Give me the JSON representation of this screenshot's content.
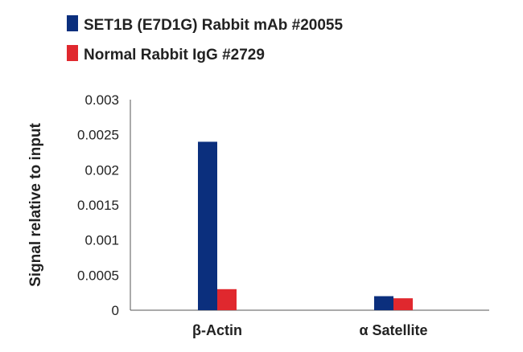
{
  "chart_data": {
    "type": "bar",
    "categories": [
      "β-Actin",
      "α Satellite"
    ],
    "series": [
      {
        "name": "SET1B (E7D1G) Rabbit mAb #20055",
        "color": "#0b2f7d",
        "values": [
          0.0024,
          0.0002
        ]
      },
      {
        "name": "Normal Rabbit IgG #2729",
        "color": "#e0282e",
        "values": [
          0.0003,
          0.00017
        ]
      }
    ],
    "ylabel": "Signal relative to input",
    "xlabel": "",
    "ylim": [
      0,
      0.003
    ],
    "yticks": [
      "0",
      "0.0005",
      "0.001",
      "0.0015",
      "0.002",
      "0.0025",
      "0.003"
    ],
    "legend_position": "top-left",
    "grid": false
  }
}
